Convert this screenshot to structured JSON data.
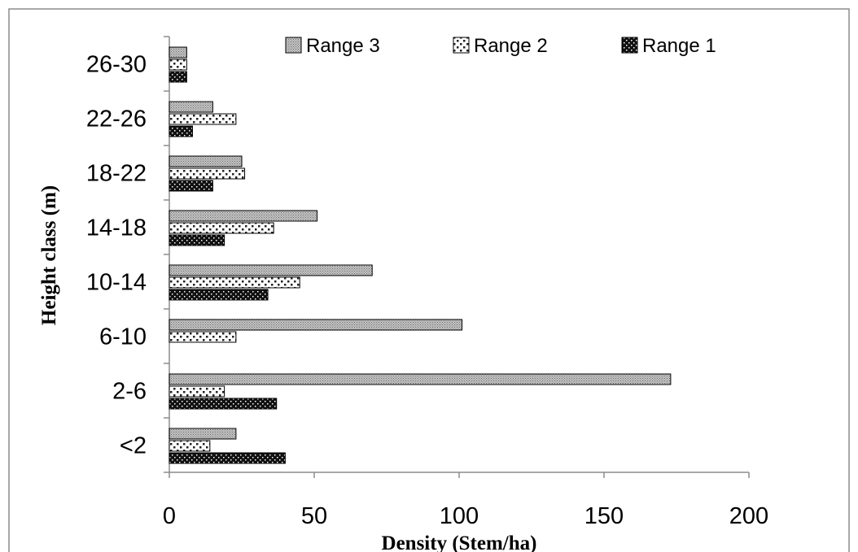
{
  "chart_data": {
    "type": "bar",
    "orientation": "horizontal",
    "categories": [
      "<2",
      "2-6",
      "6-10",
      "10-14",
      "14-18",
      "18-22",
      "22-26",
      "26-30"
    ],
    "series": [
      {
        "name": "Range 3",
        "values": [
          23,
          173,
          101,
          70,
          51,
          25,
          15,
          6
        ]
      },
      {
        "name": "Range 2",
        "values": [
          14,
          19,
          23,
          45,
          36,
          26,
          23,
          6
        ]
      },
      {
        "name": "Range 1",
        "values": [
          40,
          37,
          0,
          34,
          19,
          15,
          8,
          6
        ]
      }
    ],
    "title": "",
    "xlabel": "Density (Stem/ha)",
    "ylabel": "Height class (m)",
    "xlim": [
      0,
      200
    ],
    "xticks": [
      "0",
      "50",
      "100",
      "150",
      "200"
    ],
    "grid": false,
    "legend_position": "top",
    "legend_order": [
      "Range 3",
      "Range 2",
      "Range 1"
    ]
  }
}
